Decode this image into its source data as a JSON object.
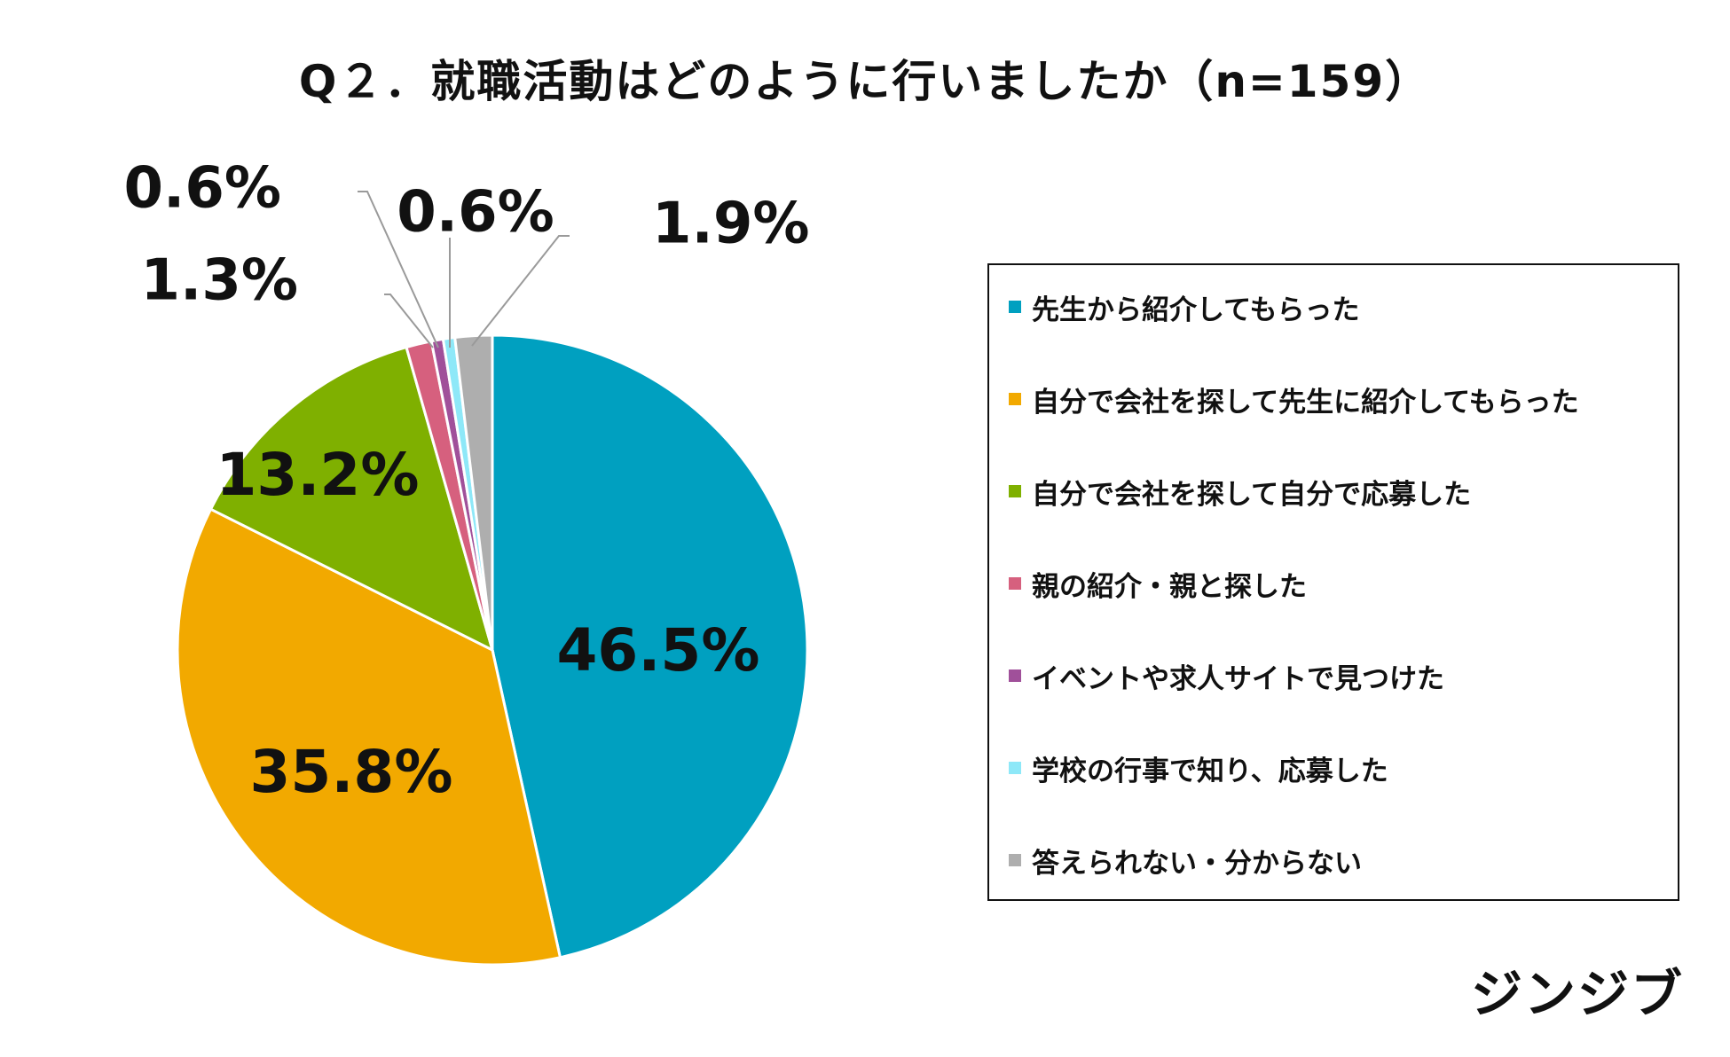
{
  "chart_data": {
    "type": "pie",
    "title": "Q２．就職活動はどのように行いましたか（n=159）",
    "start_angle_deg": 0,
    "direction": "clockwise",
    "legend_position": "right",
    "slices": [
      {
        "label": "先生から紹介してもらった",
        "value": 46.5,
        "display": "46.5%",
        "color": "#00A0C0"
      },
      {
        "label": "自分で会社を探して先生に紹介してもらった",
        "value": 35.8,
        "display": "35.8%",
        "color": "#F2A900"
      },
      {
        "label": "自分で会社を探して自分で応募した",
        "value": 13.2,
        "display": "13.2%",
        "color": "#7FB000"
      },
      {
        "label": "親の紹介・親と探した",
        "value": 1.3,
        "display": "1.3%",
        "color": "#D6607E"
      },
      {
        "label": "イベントや求人サイトで見つけた",
        "value": 0.6,
        "display": "0.6%",
        "color": "#A0509A"
      },
      {
        "label": "学校の行事で知り、応募した",
        "value": 0.6,
        "display": "0.6%",
        "color": "#8EE8F8"
      },
      {
        "label": "答えられない・分からない",
        "value": 1.9,
        "display": "1.9%",
        "color": "#AEAEAE"
      }
    ]
  },
  "brand": "ジンジブ"
}
